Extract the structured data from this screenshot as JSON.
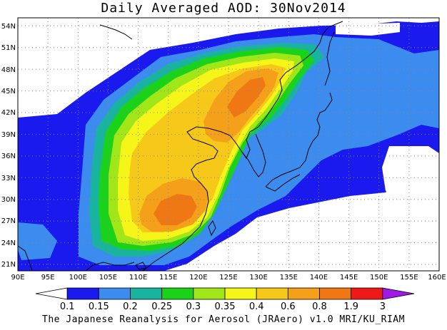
{
  "title": "Daily Averaged AOD: 30Nov2014",
  "credit": "The Japanese Reanalysis for Aerosol (JRAero) v1.0 MRI/KU_RIAM",
  "map": {
    "lon_range": [
      90,
      160
    ],
    "lat_range": [
      20,
      55
    ],
    "lon_ticks": [
      "90E",
      "95E",
      "100E",
      "105E",
      "110E",
      "115E",
      "120E",
      "125E",
      "130E",
      "135E",
      "140E",
      "145E",
      "150E",
      "155E",
      "160E"
    ],
    "lat_ticks": [
      "21N",
      "24N",
      "27N",
      "30N",
      "33N",
      "36N",
      "39N",
      "42N",
      "45N",
      "48N",
      "51N",
      "54N"
    ],
    "grid": true
  },
  "colorbar": {
    "labels": [
      "0.1",
      "0.15",
      "0.2",
      "0.25",
      "0.3",
      "0.35",
      "0.4",
      "0.6",
      "0.8",
      "1.9",
      "3"
    ],
    "colors": [
      "#ffffff",
      "#1a1aee",
      "#3c8cf0",
      "#19b4a0",
      "#1ad21a",
      "#a0e619",
      "#f5f51a",
      "#f5c81a",
      "#f5a01a",
      "#f07814",
      "#ee1a1a",
      "#a01ae6"
    ]
  }
}
